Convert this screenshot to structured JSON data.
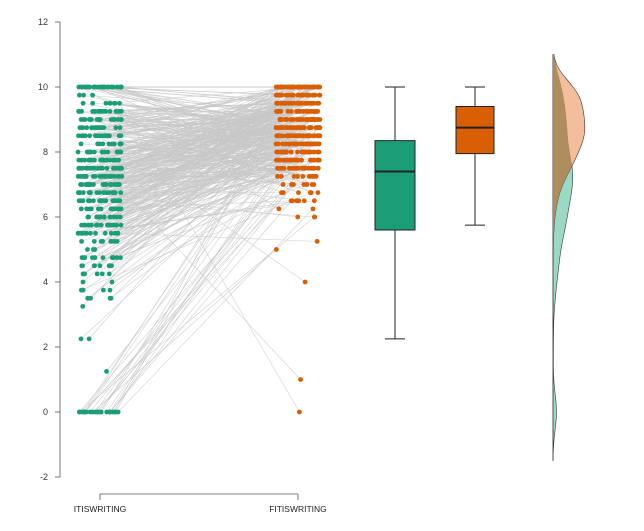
{
  "chart_data": {
    "type": "raincloud",
    "title": "",
    "xlabel": "",
    "ylabel": "",
    "ylim": [
      -2,
      12
    ],
    "yticks": [
      -2,
      0,
      2,
      4,
      6,
      8,
      10,
      12
    ],
    "ytick_labels": [
      "-2",
      "0",
      "2",
      "4",
      "6",
      "8",
      "10",
      "12"
    ],
    "categories": [
      "ITISWRITING",
      "FITISWRITING"
    ],
    "colors": {
      "ITISWRITING": "#1b9e77",
      "FITISWRITING": "#d95f02",
      "lines": "#c8c8c8",
      "density_ITISWRITING": "#7fcfb8",
      "density_FITISWRITING": "#f0a77a",
      "density_overlap": "#a98a58"
    },
    "box": [
      {
        "name": "ITISWRITING",
        "min": 2.25,
        "q1": 5.6,
        "median": 7.4,
        "q3": 8.35,
        "max": 10
      },
      {
        "name": "FITISWRITING",
        "min": 5.75,
        "q1": 7.95,
        "median": 8.75,
        "q3": 9.4,
        "max": 10
      }
    ],
    "sample_size_approx": 420,
    "notable_points": {
      "ITISWRITING_zero_cluster": 0,
      "ITISWRITING_low_outlier": 1.25,
      "FITISWRITING_low_values": [
        4,
        1,
        0
      ]
    }
  }
}
